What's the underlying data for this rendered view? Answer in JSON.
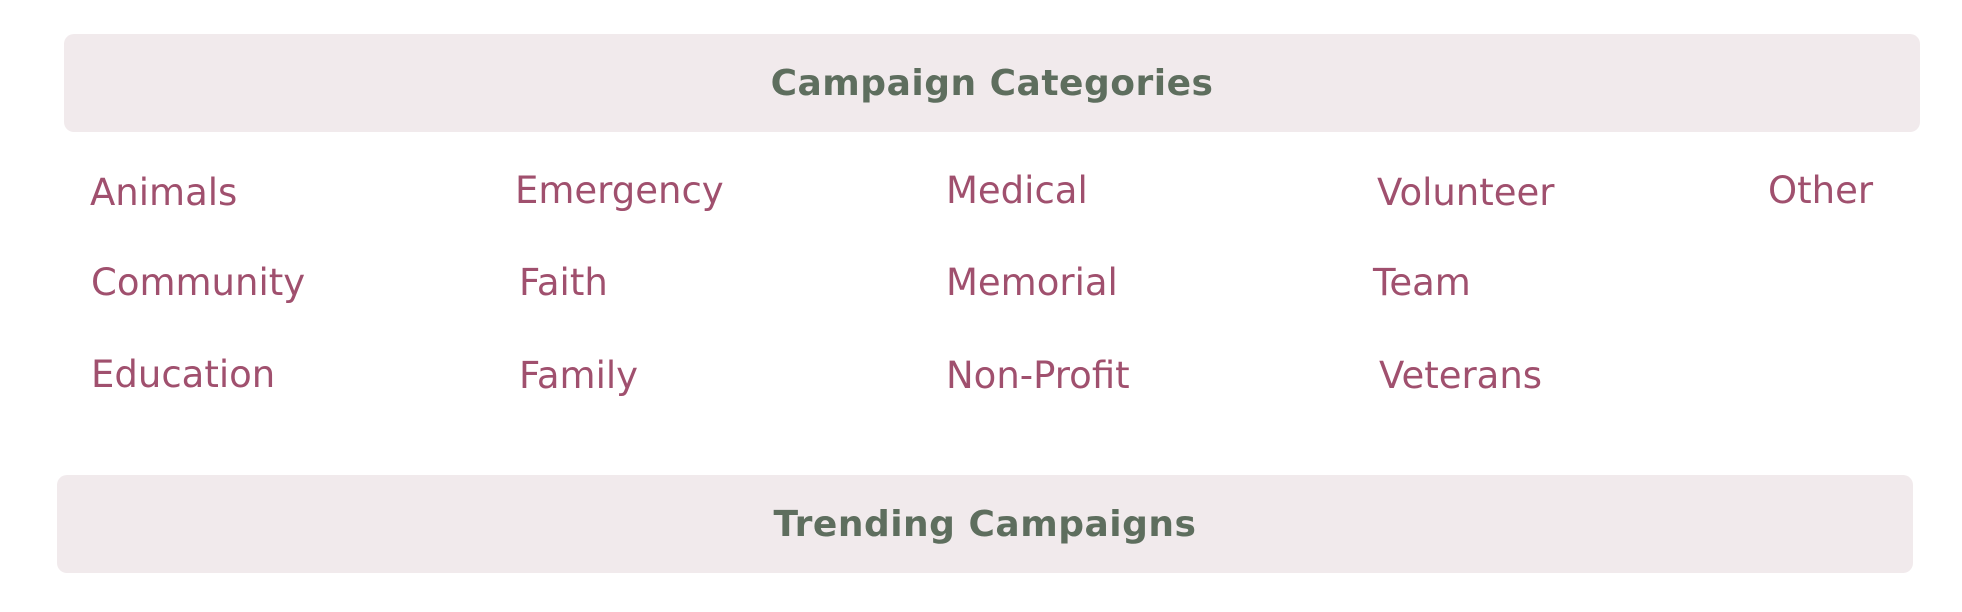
{
  "sections": {
    "categories_title": "Campaign Categories",
    "trending_title": "Trending Campaigns"
  },
  "categories": [
    "Animals",
    "Emergency",
    "Medical",
    "Volunteer",
    "Other",
    "Community",
    "Faith",
    "Memorial",
    "Team",
    "Education",
    "Family",
    "Non-Profit",
    "Veterans"
  ],
  "colors": {
    "header_bg": "#f1eaec",
    "header_text": "#5e6e5e",
    "category_link": "#a0506e"
  }
}
